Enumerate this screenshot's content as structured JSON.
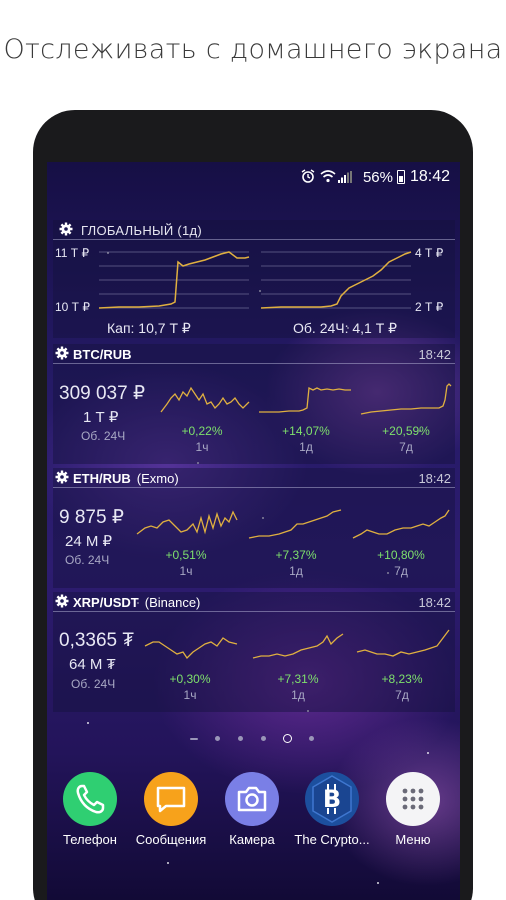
{
  "headline": "Отслеживать с домашнего экрана",
  "status_bar": {
    "battery": "56%",
    "time": "18:42",
    "icons": [
      "alarm-icon",
      "wifi-icon",
      "signal-icon",
      "battery-icon"
    ]
  },
  "global_widget": {
    "title": "ГЛОБАЛЬНЫЙ (1д)",
    "cap_chart": {
      "y_top": "11 Т ₽",
      "y_bottom": "10 Т ₽"
    },
    "volume_chart": {
      "y_top": "4 Т ₽",
      "y_bottom": "2 Т ₽"
    },
    "cap_text": "Кап: 10,7 Т ₽",
    "volume_text": "Об. 24Ч: 4,1 Т ₽"
  },
  "widgets": [
    {
      "pair": "BTC/RUB",
      "exchange": "",
      "time": "18:42",
      "price": "309 037 ₽",
      "volume": "1 Т ₽",
      "volume_label": "Об. 24Ч",
      "changes": [
        {
          "value": "+0,22%",
          "period": "1ч"
        },
        {
          "value": "+14,07%",
          "period": "1д"
        },
        {
          "value": "+20,59%",
          "period": "7д"
        }
      ]
    },
    {
      "pair": "ETH/RUB",
      "exchange": "(Exmo)",
      "time": "18:42",
      "price": "9 875 ₽",
      "volume": "24 М ₽",
      "volume_label": "Об. 24Ч",
      "changes": [
        {
          "value": "+0,51%",
          "period": "1ч"
        },
        {
          "value": "+7,37%",
          "period": "1д"
        },
        {
          "value": "+10,80%",
          "period": "7д"
        }
      ]
    },
    {
      "pair": "XRP/USDT",
      "exchange": "(Binance)",
      "time": "18:42",
      "price": "0,3365 ₮",
      "volume": "64 М ₮",
      "volume_label": "Об. 24Ч",
      "changes": [
        {
          "value": "+0,30%",
          "period": "1ч"
        },
        {
          "value": "+7,31%",
          "period": "1д"
        },
        {
          "value": "+8,23%",
          "period": "7д"
        }
      ]
    }
  ],
  "dock": [
    {
      "label": "Телефон",
      "icon": "phone-icon",
      "color": "#2fcf72"
    },
    {
      "label": "Сообщения",
      "icon": "message-icon",
      "color": "#f7a21b"
    },
    {
      "label": "Камера",
      "icon": "camera-icon",
      "color": "#7a7fe6"
    },
    {
      "label": "The Crypto...",
      "icon": "bitcoin-icon",
      "color": "#1c4f9e"
    },
    {
      "label": "Меню",
      "icon": "apps-grid-icon",
      "color": "#f4f4f6"
    }
  ],
  "colors": {
    "chart_line": "#e0b040",
    "positive": "#7ee06c",
    "accent_panel": "#141240"
  }
}
